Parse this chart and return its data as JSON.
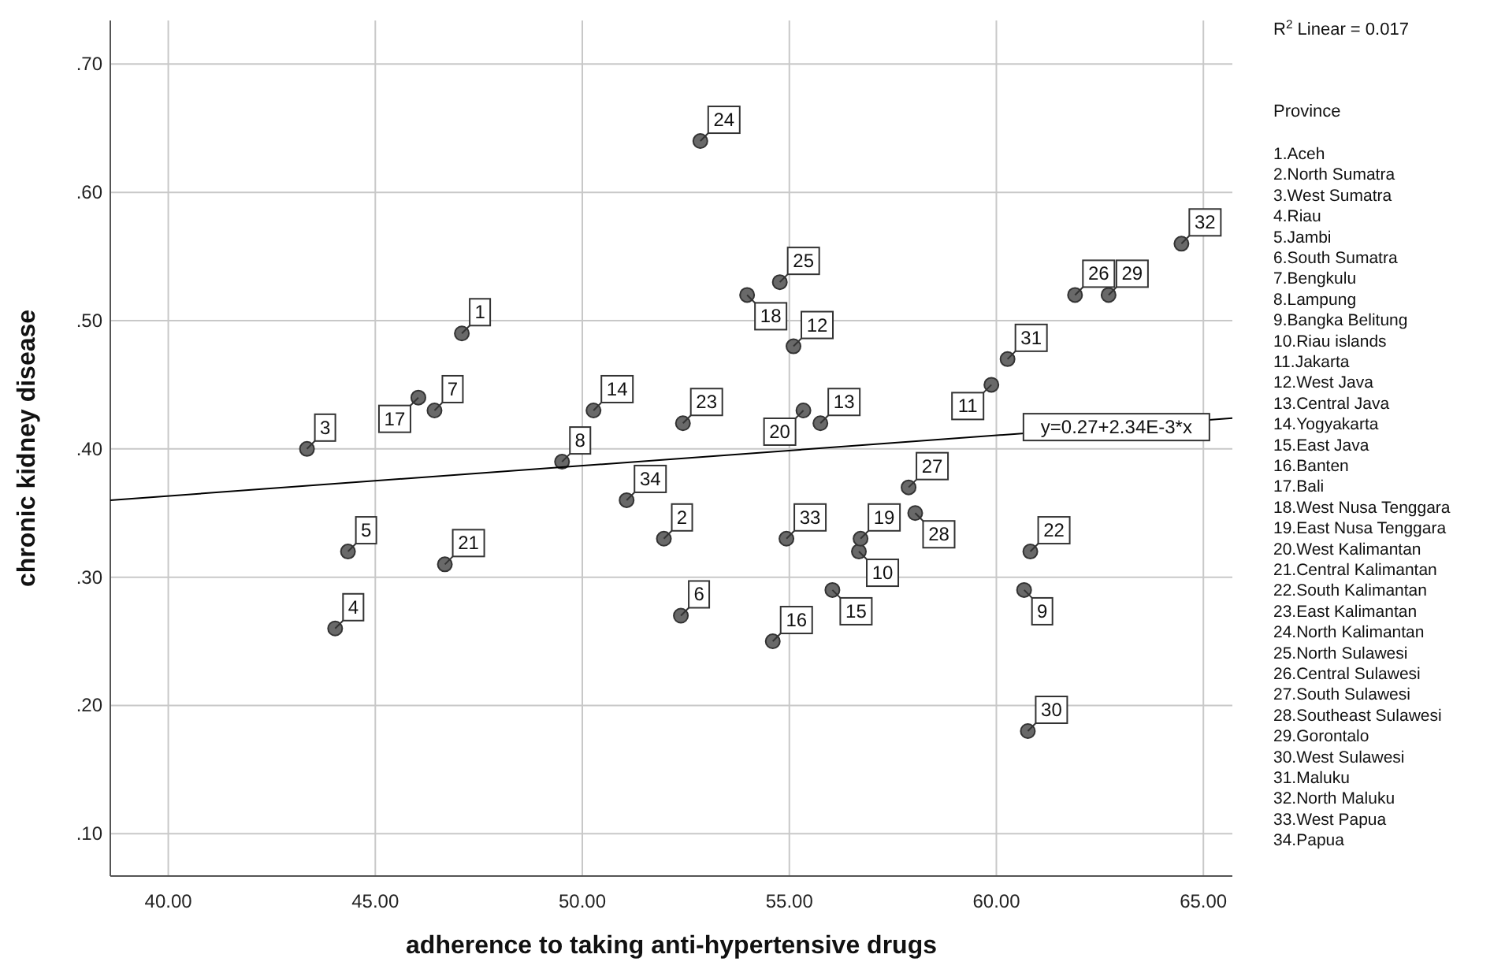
{
  "chart_data": {
    "type": "scatter",
    "xlabel": "adherence to taking anti-hypertensive drugs",
    "ylabel": "chronic kidney disease",
    "legend_title": "Province",
    "xlim": [
      38.6,
      65.7
    ],
    "ylim": [
      0.067,
      0.734
    ],
    "xticks": [
      {
        "value": 40,
        "label": "40.00"
      },
      {
        "value": 45,
        "label": "45.00"
      },
      {
        "value": 50,
        "label": "50.00"
      },
      {
        "value": 55,
        "label": "55.00"
      },
      {
        "value": 60,
        "label": "60.00"
      },
      {
        "value": 65,
        "label": "65.00"
      }
    ],
    "yticks": [
      {
        "value": 0.1,
        "label": ".10"
      },
      {
        "value": 0.2,
        "label": ".20"
      },
      {
        "value": 0.3,
        "label": ".30"
      },
      {
        "value": 0.4,
        "label": ".40"
      },
      {
        "value": 0.5,
        "label": ".50"
      },
      {
        "value": 0.6,
        "label": ".60"
      },
      {
        "value": 0.7,
        "label": ".70"
      }
    ],
    "grid": true,
    "series": [
      {
        "marker": "circle",
        "color": "#696969",
        "x": [
          47.09,
          51.97,
          43.35,
          44.03,
          44.34,
          52.38,
          46.43,
          49.51,
          60.67,
          56.68,
          59.88,
          55.1,
          55.75,
          50.27,
          56.04,
          54.6,
          46.04,
          53.98,
          56.72,
          55.34,
          46.68,
          60.82,
          52.43,
          52.85,
          54.77,
          61.9,
          57.88,
          58.04,
          62.71,
          60.76,
          60.27,
          64.47,
          54.93,
          51.07
        ],
        "values": [
          0.49,
          0.33,
          0.4,
          0.26,
          0.32,
          0.27,
          0.43,
          0.39,
          0.29,
          0.32,
          0.45,
          0.48,
          0.42,
          0.43,
          0.29,
          0.25,
          0.44,
          0.52,
          0.33,
          0.43,
          0.31,
          0.32,
          0.42,
          0.64,
          0.53,
          0.52,
          0.37,
          0.35,
          0.52,
          0.18,
          0.47,
          0.56,
          0.33,
          0.36
        ]
      },
      {
        "type": "line",
        "color": "#000000",
        "line_style": "solid",
        "x": [
          38.6,
          65.7
        ],
        "values": [
          0.36,
          0.424
        ]
      }
    ],
    "annotations": [
      {
        "text": "y=0.27+2.34E-3*x",
        "x": 62.9,
        "y": 0.417
      },
      {
        "text": "1",
        "x": 47.09,
        "y": 0.49
      },
      {
        "text": "2",
        "x": 51.97,
        "y": 0.33
      },
      {
        "text": "3",
        "x": 43.35,
        "y": 0.4
      },
      {
        "text": "4",
        "x": 44.03,
        "y": 0.26
      },
      {
        "text": "5",
        "x": 44.34,
        "y": 0.32
      },
      {
        "text": "6",
        "x": 52.38,
        "y": 0.27
      },
      {
        "text": "7",
        "x": 46.43,
        "y": 0.43
      },
      {
        "text": "8",
        "x": 49.51,
        "y": 0.39
      },
      {
        "text": "9",
        "x": 60.67,
        "y": 0.29
      },
      {
        "text": "10",
        "x": 56.68,
        "y": 0.32
      },
      {
        "text": "11",
        "x": 59.88,
        "y": 0.45
      },
      {
        "text": "12",
        "x": 55.1,
        "y": 0.48
      },
      {
        "text": "13",
        "x": 55.75,
        "y": 0.42
      },
      {
        "text": "14",
        "x": 50.27,
        "y": 0.43
      },
      {
        "text": "15",
        "x": 56.04,
        "y": 0.29
      },
      {
        "text": "16",
        "x": 54.6,
        "y": 0.25
      },
      {
        "text": "17",
        "x": 46.04,
        "y": 0.44
      },
      {
        "text": "18",
        "x": 53.98,
        "y": 0.52
      },
      {
        "text": "19",
        "x": 56.72,
        "y": 0.33
      },
      {
        "text": "20",
        "x": 55.34,
        "y": 0.43
      },
      {
        "text": "21",
        "x": 46.68,
        "y": 0.31
      },
      {
        "text": "22",
        "x": 60.82,
        "y": 0.32
      },
      {
        "text": "23",
        "x": 52.43,
        "y": 0.42
      },
      {
        "text": "24",
        "x": 52.85,
        "y": 0.64
      },
      {
        "text": "25",
        "x": 54.77,
        "y": 0.53
      },
      {
        "text": "26",
        "x": 61.9,
        "y": 0.52
      },
      {
        "text": "27",
        "x": 57.88,
        "y": 0.37
      },
      {
        "text": "28",
        "x": 58.04,
        "y": 0.35
      },
      {
        "text": "29",
        "x": 62.71,
        "y": 0.52
      },
      {
        "text": "30",
        "x": 60.76,
        "y": 0.18
      },
      {
        "text": "31",
        "x": 60.27,
        "y": 0.47
      },
      {
        "text": "32",
        "x": 64.47,
        "y": 0.56
      },
      {
        "text": "33",
        "x": 54.93,
        "y": 0.33
      },
      {
        "text": "34",
        "x": 51.07,
        "y": 0.36
      },
      "R$^{2}$ Linear = 0.017",
      "1.Aceh",
      "2.North Sumatra",
      "3.West Sumatra",
      "4.Riau",
      "5.Jambi",
      "6.South Sumatra",
      "7.Bengkulu",
      "8.Lampung",
      "9.Bangka Belitung",
      "10.Riau islands",
      "11.Jakarta",
      "12.West Java",
      "13.Central Java",
      "14.Yogyakarta",
      "15.East Java",
      "16.Banten",
      "17.Bali",
      "18.West Nusa Tenggara",
      "19.East Nusa Tenggara",
      "20.West Kalimantan",
      "21.Central Kalimantan",
      "22.South Kalimantan",
      "23.East Kalimantan",
      "24.North Kalimantan",
      "25.North Sulawesi",
      "26.Central Sulawesi",
      "27.South Sulawesi",
      "28.Southeast Sulawesi",
      "29.Gorontalo",
      "30.West Sulawesi",
      "31.Maluku",
      "32.North Maluku",
      "33.West Papua",
      "34.Papua"
    ]
  }
}
